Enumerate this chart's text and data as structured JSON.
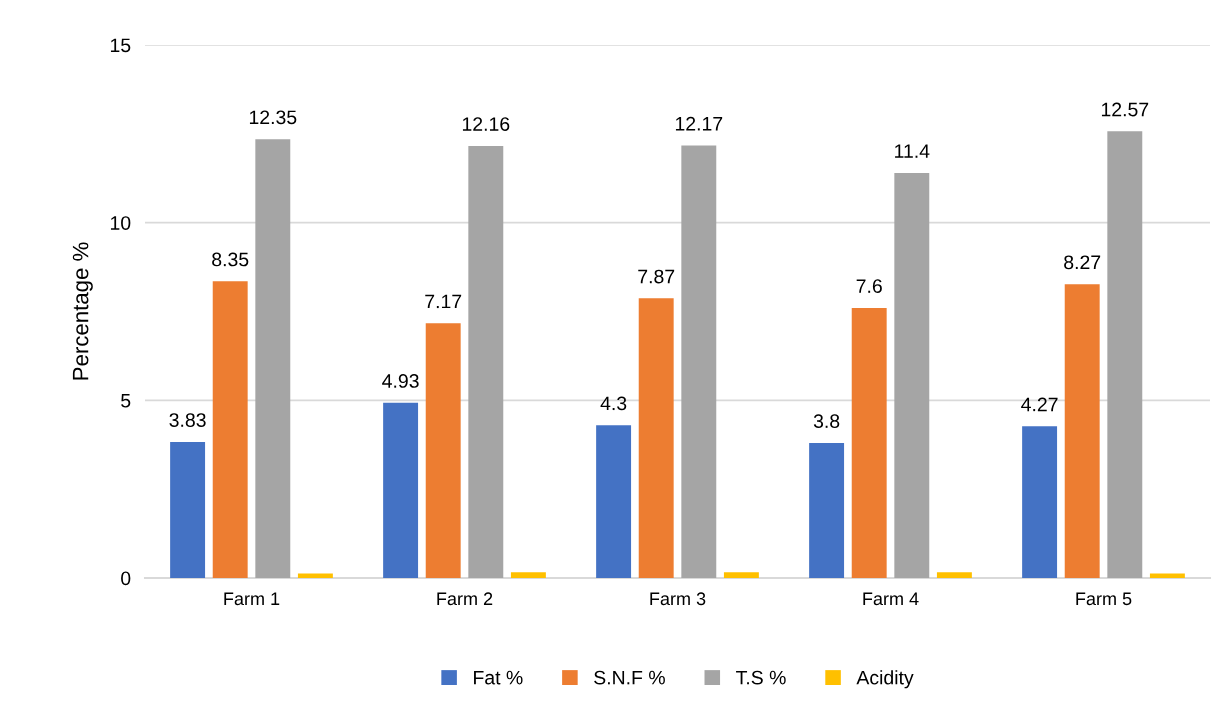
{
  "chart_data": {
    "type": "bar",
    "ylabel": "Percentage %",
    "categories": [
      "Farm 1",
      "Farm 2",
      "Farm 3",
      "Farm 4",
      "Farm 5"
    ],
    "series": [
      {
        "name": "Fat %",
        "color": "#4472c4",
        "values": [
          3.83,
          4.93,
          4.3,
          3.8,
          4.27
        ],
        "value_labels": [
          "3.83",
          "4.93",
          "4.3",
          "3.8",
          "4.27"
        ]
      },
      {
        "name": "S.N.F %",
        "color": "#ed7d31",
        "values": [
          8.35,
          7.17,
          7.87,
          7.6,
          8.27
        ],
        "value_labels": [
          "8.35",
          "7.17",
          "7.87",
          "7.6",
          "8.27"
        ]
      },
      {
        "name": "T.S %",
        "color": "#a5a5a5",
        "values": [
          12.35,
          12.16,
          12.17,
          11.4,
          12.57
        ],
        "value_labels": [
          "12.35",
          "12.16",
          "12.17",
          "11.4",
          "12.57"
        ]
      },
      {
        "name": "Acidity",
        "color": "#ffc000",
        "values": [
          0.13,
          0.16,
          0.16,
          0.16,
          0.13
        ]
      }
    ],
    "ylim": [
      0,
      15
    ],
    "yticks": [
      0,
      5,
      10,
      15
    ],
    "grid": "y",
    "legend": "bottom"
  }
}
